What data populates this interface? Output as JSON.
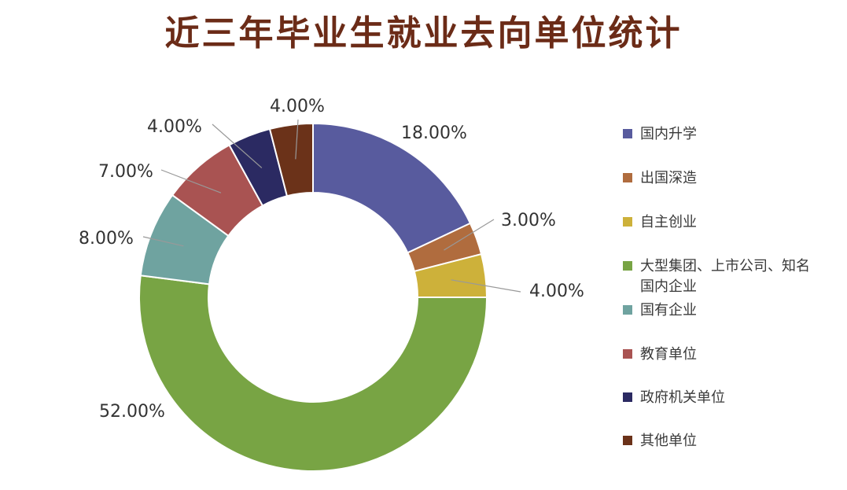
{
  "title": "近三年毕业生就业去向单位统计",
  "chart_data": {
    "type": "pie",
    "variant": "donut",
    "title": "近三年毕业生就业去向单位统计",
    "start_angle_deg": 0,
    "direction": "clockwise",
    "legend_position": "right",
    "categories": [
      "国内升学",
      "出国深造",
      "自主创业",
      "大型集团、上市公司、知名国内企业",
      "国有企业",
      "教育单位",
      "政府机关单位",
      "其他单位"
    ],
    "values": [
      18,
      3,
      4,
      52,
      8,
      7,
      4,
      4
    ],
    "labels": [
      "18.00%",
      "3.00%",
      "4.00%",
      "52.00%",
      "8.00%",
      "7.00%",
      "4.00%",
      "4.00%"
    ],
    "colors": [
      "#585b9e",
      "#b06c3e",
      "#cdb13a",
      "#78a444",
      "#6fa3a0",
      "#a95352",
      "#2b2a62",
      "#6b3219"
    ]
  },
  "legend": {
    "items": [
      {
        "label": "国内升学",
        "color": "#585b9e"
      },
      {
        "label": "出国深造",
        "color": "#b06c3e"
      },
      {
        "label": "自主创业",
        "color": "#cdb13a"
      },
      {
        "label": "大型集团、上市公司、知名国内企业",
        "color": "#78a444"
      },
      {
        "label": "国有企业",
        "color": "#6fa3a0"
      },
      {
        "label": "教育单位",
        "color": "#a95352"
      },
      {
        "label": "政府机关单位",
        "color": "#2b2a62"
      },
      {
        "label": "其他单位",
        "color": "#6b3219"
      }
    ]
  },
  "colors": {
    "title": "#6b2b17",
    "label_text": "#333333",
    "leader_line": "#999999"
  }
}
